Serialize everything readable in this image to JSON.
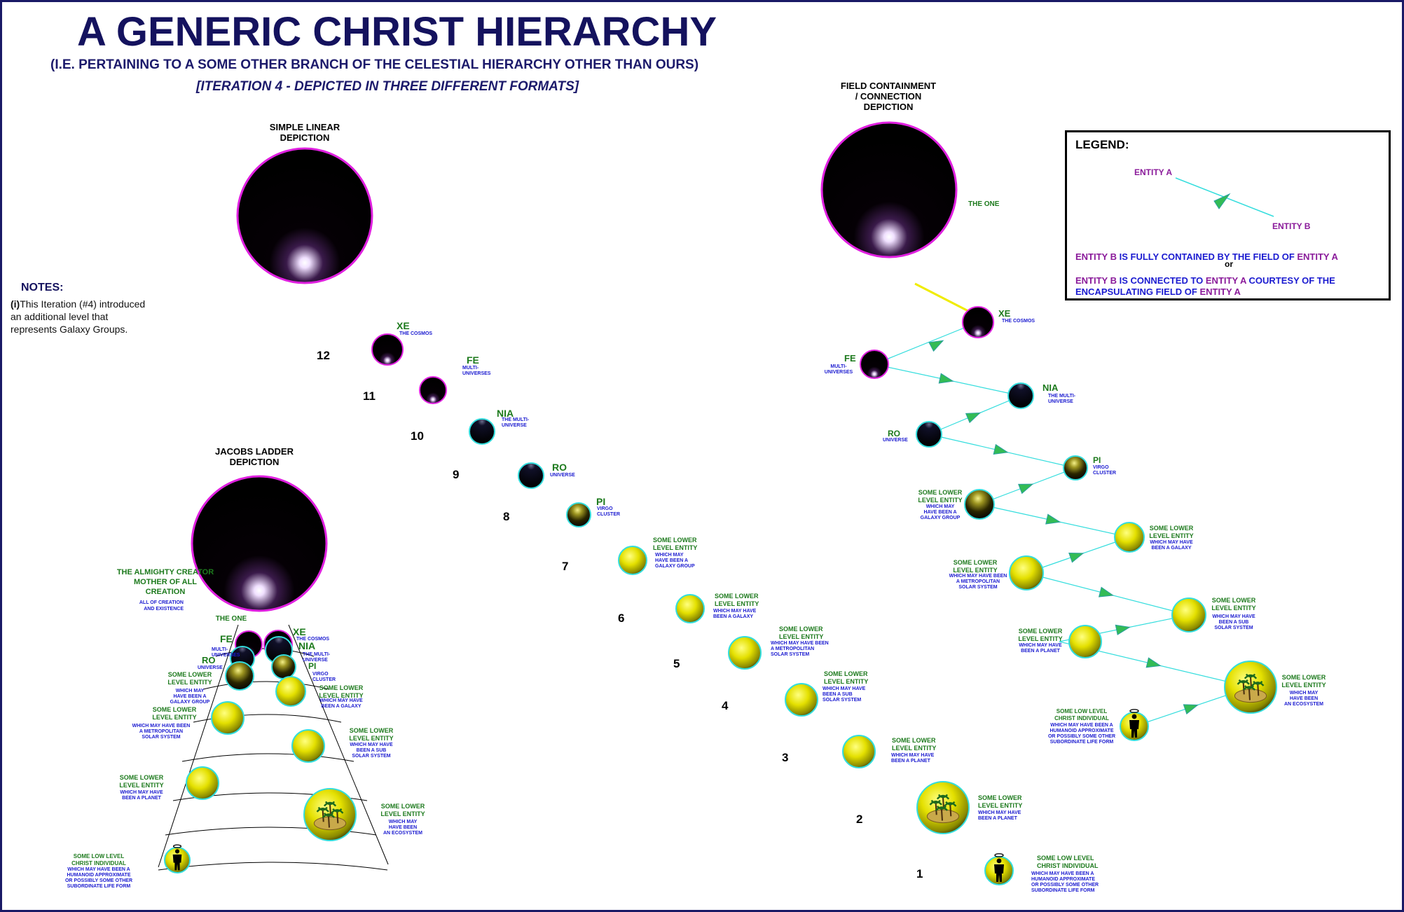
{
  "header": {
    "title": "A GENERIC CHRIST HIERARCHY",
    "subtitle": "(I.E. PERTAINING TO A SOME OTHER BRANCH OF THE CELESTIAL HIERARCHY OTHER THAN OURS)",
    "iteration": "[ITERATION 4 - DEPICTED IN THREE DIFFERENT FORMATS]"
  },
  "sections": {
    "linear": "SIMPLE LINEAR\nDEPICTION",
    "jacobs": "JACOBS LADDER\nDEPICTION",
    "field": "FIELD CONTAINMENT\n/ CONNECTION\nDEPICTION"
  },
  "notes": {
    "heading": "NOTES:",
    "marker": "(i)",
    "body": "This Iteration (#4) introduced\nan additional level that\nrepresents Galaxy Groups."
  },
  "legend": {
    "heading": "LEGEND:",
    "entity_a": "ENTITY  A",
    "entity_b": "ENTITY  B",
    "line1_pre": "ENTITY  B",
    "line1_mid": "  IS FULLY CONTAINED BY THE FIELD OF  ",
    "line1_post": "ENTITY  A",
    "or": "or",
    "line2_pre": "ENTITY  B",
    "line2_mid": "  IS CONNECTED TO  ",
    "line2_post": "ENTITY  A",
    "line2_tail": " COURTESY OF THE",
    "line3_pre": "ENCAPSULATING FIELD OF ",
    "line3_post": "ENTITY  A"
  },
  "labels": {
    "xe": "XE",
    "xe_sub": "THE COSMOS",
    "fe": "FE",
    "fe_sub": "MULTI-\nUNIVERSES",
    "nia": "NIA",
    "nia_sub": "THE MULTI-\nUNIVERSE",
    "ro": "RO",
    "ro_sub": "UNIVERSE",
    "pi": "PI",
    "pi_sub": "VIRGO\nCLUSTER",
    "the_one": "THE ONE",
    "almighty": "THE ALMIGHTY CREATOR\nMOTHER OF ALL\nCREATION",
    "almighty_sub": "ALL OF CREATION\nAND EXISTENCE",
    "sle": "SOME LOWER\nLEVEL ENTITY",
    "galaxy_group": "WHICH MAY\nHAVE BEEN A\nGALAXY GROUP",
    "galaxy": "WHICH MAY HAVE\nBEEN A GALAXY",
    "metro": "WHICH MAY HAVE BEEN\nA METROPOLITAN\nSOLAR SYSTEM",
    "subsolar": "WHICH MAY HAVE\nBEEN A SUB\nSOLAR SYSTEM",
    "planet": "WHICH MAY HAVE\nBEEN A PLANET",
    "ecosystem": "WHICH MAY\nHAVE BEEN\nAN ECOSYSTEM",
    "christ": "SOME LOW LEVEL\nCHRIST INDIVIDUAL",
    "christ_sub": "WHICH MAY HAVE BEEN A\nHUMANOID APPROXIMATE\nOR POSSIBLY SOME OTHER\nSUBORDINATE LIFE FORM"
  },
  "levels": [
    "12",
    "11",
    "10",
    "9",
    "8",
    "7",
    "6",
    "5",
    "4",
    "3",
    "2",
    "1"
  ],
  "colors": {
    "navy": "#14125e",
    "green_label": "#1d7a1d",
    "blue_label": "#1a1ad0",
    "purple_label": "#8a1a9a",
    "cyan_link": "#33dddd",
    "magenta_ring": "#e020e0",
    "sphere_gold": "#e4e000",
    "yellow_line": "#f0ec00"
  },
  "icons": [
    "silhouette-figure-icon",
    "halo-icon",
    "palm-tree-island-icon",
    "triangle-arrow-icon"
  ]
}
